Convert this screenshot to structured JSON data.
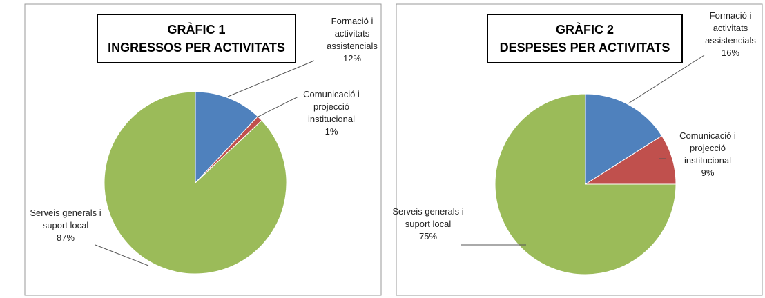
{
  "chart_data": [
    {
      "type": "pie",
      "title": "GRÀFIC 1",
      "subtitle": "INGRESSOS PER ACTIVITATS",
      "categories": [
        "Formació i activitats assistencials",
        "Comunicació i projecció institucional",
        "Serveis generals i suport local"
      ],
      "values": [
        12,
        1,
        87
      ],
      "value_labels": [
        "12%",
        "1%",
        "87%"
      ],
      "colors": [
        "#4f81bd",
        "#c0504d",
        "#9bbb59"
      ]
    },
    {
      "type": "pie",
      "title": "GRÀFIC 2",
      "subtitle": "DESPESES PER ACTIVITATS",
      "categories": [
        "Formació i activitats assistencials",
        "Comunicació i projecció institucional",
        "Serveis generals i suport local"
      ],
      "values": [
        16,
        9,
        75
      ],
      "value_labels": [
        "16%",
        "9%",
        "75%"
      ],
      "colors": [
        "#4f81bd",
        "#c0504d",
        "#9bbb59"
      ]
    }
  ]
}
